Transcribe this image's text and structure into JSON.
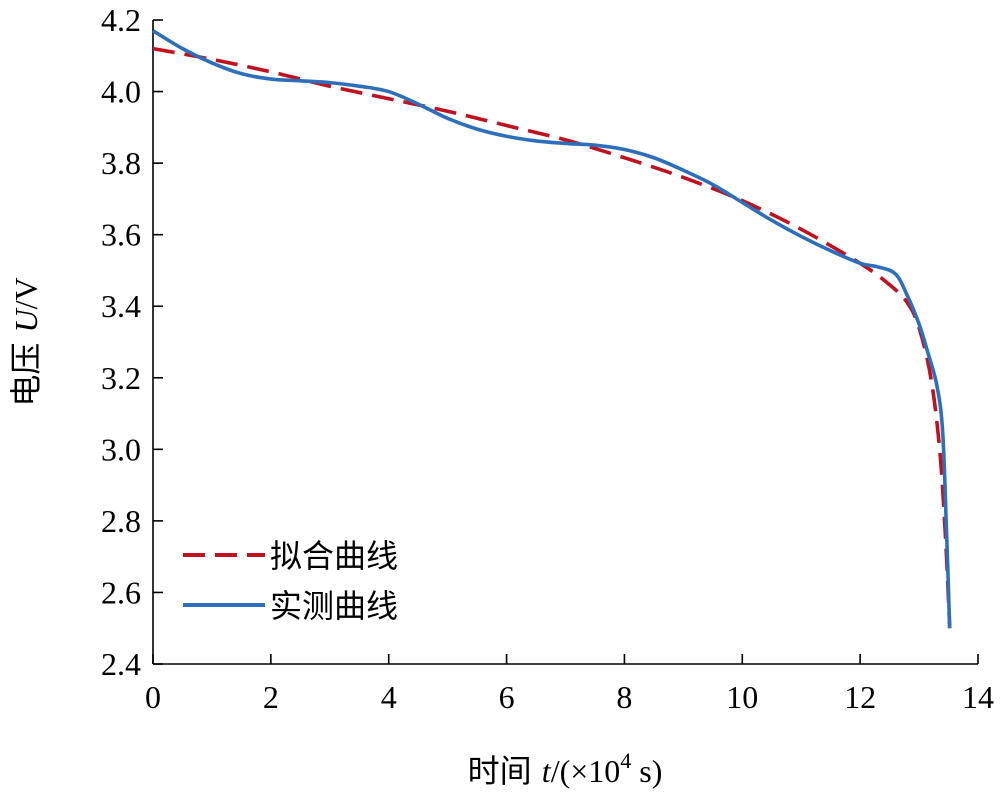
{
  "chart_data": {
    "type": "line",
    "xlabel": {
      "prefix": "时间 ",
      "var": "t",
      "open": "/(×10",
      "exp": "4",
      "unit": " s)"
    },
    "ylabel": {
      "prefix": "电压 ",
      "var": "U",
      "unit": "/V"
    },
    "xlim": [
      0,
      14
    ],
    "ylim": [
      2.4,
      4.2
    ],
    "xticks": [
      0,
      2,
      4,
      6,
      8,
      10,
      12,
      14
    ],
    "yticks": [
      2.4,
      2.6,
      2.8,
      3.0,
      3.2,
      3.4,
      3.6,
      3.8,
      4.0,
      4.2
    ],
    "xtick_labels": [
      "0",
      "2",
      "4",
      "6",
      "8",
      "10",
      "12",
      "14"
    ],
    "ytick_labels": [
      "2.4",
      "2.6",
      "2.8",
      "3.0",
      "3.2",
      "3.4",
      "3.6",
      "3.8",
      "4.0",
      "4.2"
    ],
    "grid": false,
    "legend_position": "bottom-left",
    "series": [
      {
        "name": "拟合曲线",
        "style": "dashed",
        "color": "#c0111f",
        "x": [
          0,
          1,
          2,
          3,
          4,
          5,
          6,
          7,
          8,
          9,
          10,
          11,
          12,
          12.5,
          12.8,
          13.0,
          13.2,
          13.35,
          13.45,
          13.52
        ],
        "y": [
          4.12,
          4.09,
          4.055,
          4.015,
          3.98,
          3.945,
          3.905,
          3.865,
          3.815,
          3.76,
          3.695,
          3.615,
          3.52,
          3.46,
          3.41,
          3.34,
          3.2,
          3.0,
          2.75,
          2.5
        ]
      },
      {
        "name": "实测曲线",
        "style": "solid",
        "color": "#2d6fba",
        "x": [
          0,
          0.5,
          1,
          1.5,
          2,
          2.5,
          3,
          3.5,
          4,
          4.5,
          5,
          5.5,
          6,
          6.5,
          7,
          7.5,
          8,
          8.5,
          9,
          9.5,
          10,
          10.5,
          11,
          11.5,
          12,
          12.3,
          12.6,
          12.8,
          13.0,
          13.15,
          13.3,
          13.4,
          13.47,
          13.52
        ],
        "y": [
          4.17,
          4.12,
          4.08,
          4.05,
          4.035,
          4.03,
          4.025,
          4.015,
          4.0,
          3.965,
          3.925,
          3.895,
          3.875,
          3.862,
          3.855,
          3.85,
          3.838,
          3.815,
          3.78,
          3.74,
          3.69,
          3.64,
          3.595,
          3.555,
          3.52,
          3.51,
          3.49,
          3.43,
          3.35,
          3.27,
          3.18,
          3.05,
          2.75,
          2.5
        ]
      }
    ]
  }
}
